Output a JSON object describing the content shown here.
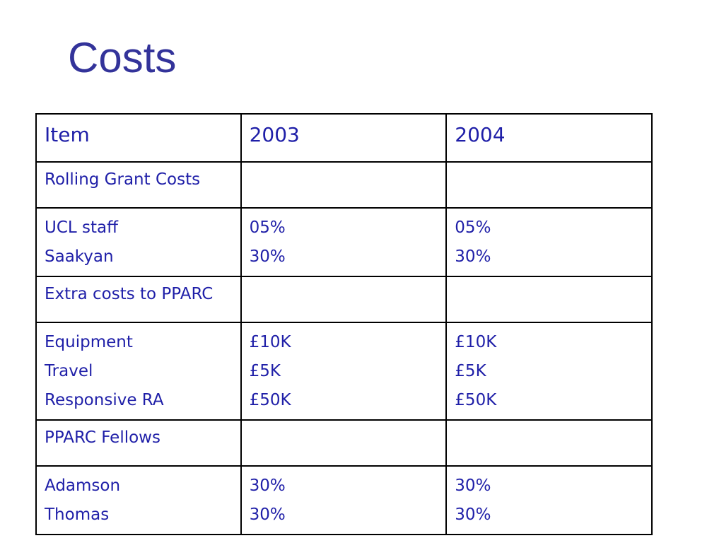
{
  "slide": {
    "title": "Costs"
  },
  "table": {
    "headers": [
      "Item",
      "2003",
      "2004"
    ],
    "rows": [
      {
        "type": "section",
        "item": [
          "Rolling Grant Costs"
        ],
        "y2003": [],
        "y2004": []
      },
      {
        "type": "data",
        "item": [
          "UCL staff",
          "Saakyan"
        ],
        "y2003": [
          "05%",
          "30%"
        ],
        "y2004": [
          "05%",
          "30%"
        ]
      },
      {
        "type": "section",
        "item": [
          "Extra costs to PPARC"
        ],
        "y2003": [],
        "y2004": []
      },
      {
        "type": "data",
        "item": [
          "Equipment",
          "Travel",
          "Responsive RA"
        ],
        "y2003": [
          "£10K",
          "£5K",
          "£50K"
        ],
        "y2004": [
          "£10K",
          "£5K",
          "£50K"
        ]
      },
      {
        "type": "section",
        "item": [
          "PPARC Fellows"
        ],
        "y2003": [],
        "y2004": []
      },
      {
        "type": "data",
        "item": [
          "Adamson",
          "Thomas"
        ],
        "y2003": [
          "30%",
          "30%"
        ],
        "y2004": [
          "30%",
          "30%"
        ]
      }
    ]
  },
  "colors": {
    "title": "#33339a",
    "text": "#1f1fa8",
    "border": "#000000",
    "background": "#ffffff"
  }
}
